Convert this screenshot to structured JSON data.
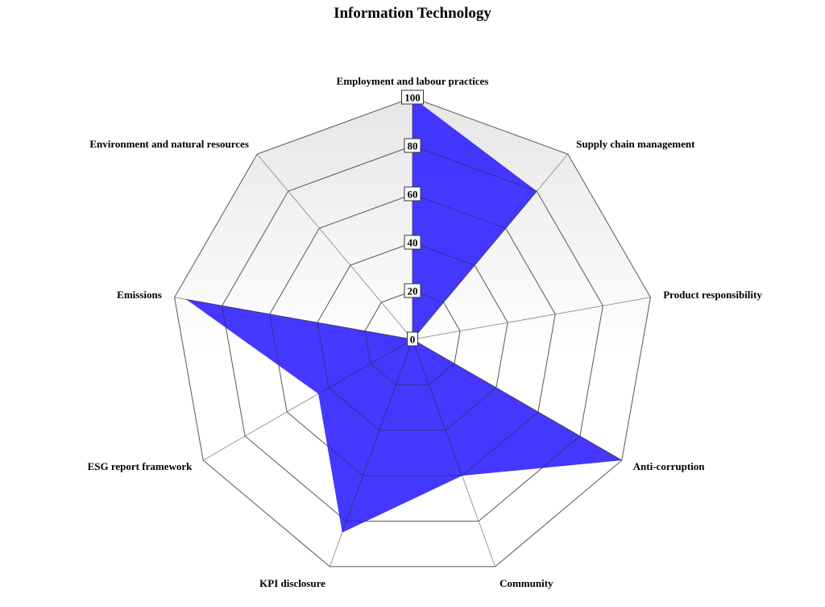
{
  "chart_data": {
    "type": "radar",
    "title": "Information Technology",
    "categories": [
      "Employment and labour practices",
      "Supply chain management",
      "Product responsibility",
      "Anti-corruption",
      "Community",
      "KPI disclosure",
      "ESG report framework",
      "Emissions",
      "Environment and natural resources"
    ],
    "series": [
      {
        "values": [
          100,
          80,
          0,
          100,
          60,
          85,
          45,
          95,
          0
        ]
      }
    ],
    "ticks": [
      "0",
      "20",
      "40",
      "60",
      "80",
      "100"
    ],
    "range": [
      0,
      100
    ],
    "colors": {
      "fill": "#3a2dff",
      "grid": "#9a9a9a",
      "grid_inner": "#2e2e2e",
      "background_top": "#e6e6e6",
      "background_bottom": "#ffffff"
    }
  }
}
